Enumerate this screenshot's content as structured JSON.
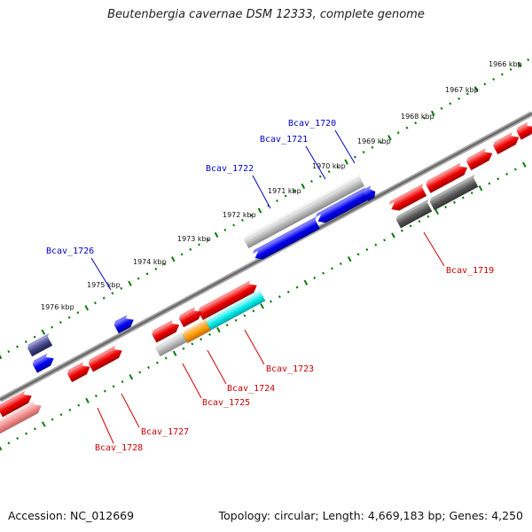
{
  "title": "Beutenbergia cavernae DSM 12333, complete genome",
  "accession": "Accession: NC_012669",
  "topology": "Topology: circular; Length: 4,669,183 bp; Genes: 4,250",
  "colors": {
    "forward_gene": "#e00000",
    "reverse_gene": "#0000e0",
    "grey_gene": "#b0b0b0",
    "dark_grey_gene": "#555555",
    "cyan_gene": "#00e0e0",
    "orange_gene": "#ff9900",
    "navy_gene": "#404080",
    "pink_gene": "#ee8888",
    "ruler_dots": "#007700",
    "upper_label": "#0000cc",
    "lower_label": "#cc0000",
    "backbone": "#777777"
  },
  "kbp_ticks": [
    "1966 kbp",
    "1967 kbp",
    "1968 kbp",
    "1969 kbp",
    "1970 kbp",
    "1971 kbp",
    "1972 kbp",
    "1973 kbp",
    "1974 kbp",
    "1975 kbp",
    "1976 kbp"
  ],
  "upper_gene_labels": [
    "Bcav_1720",
    "Bcav_1721",
    "Bcav_1722",
    "Bcav_1726"
  ],
  "lower_gene_labels": [
    "Bcav_1719",
    "Bcav_1723",
    "Bcav_1724",
    "Bcav_1725",
    "Bcav_1727",
    "Bcav_1728"
  ]
}
